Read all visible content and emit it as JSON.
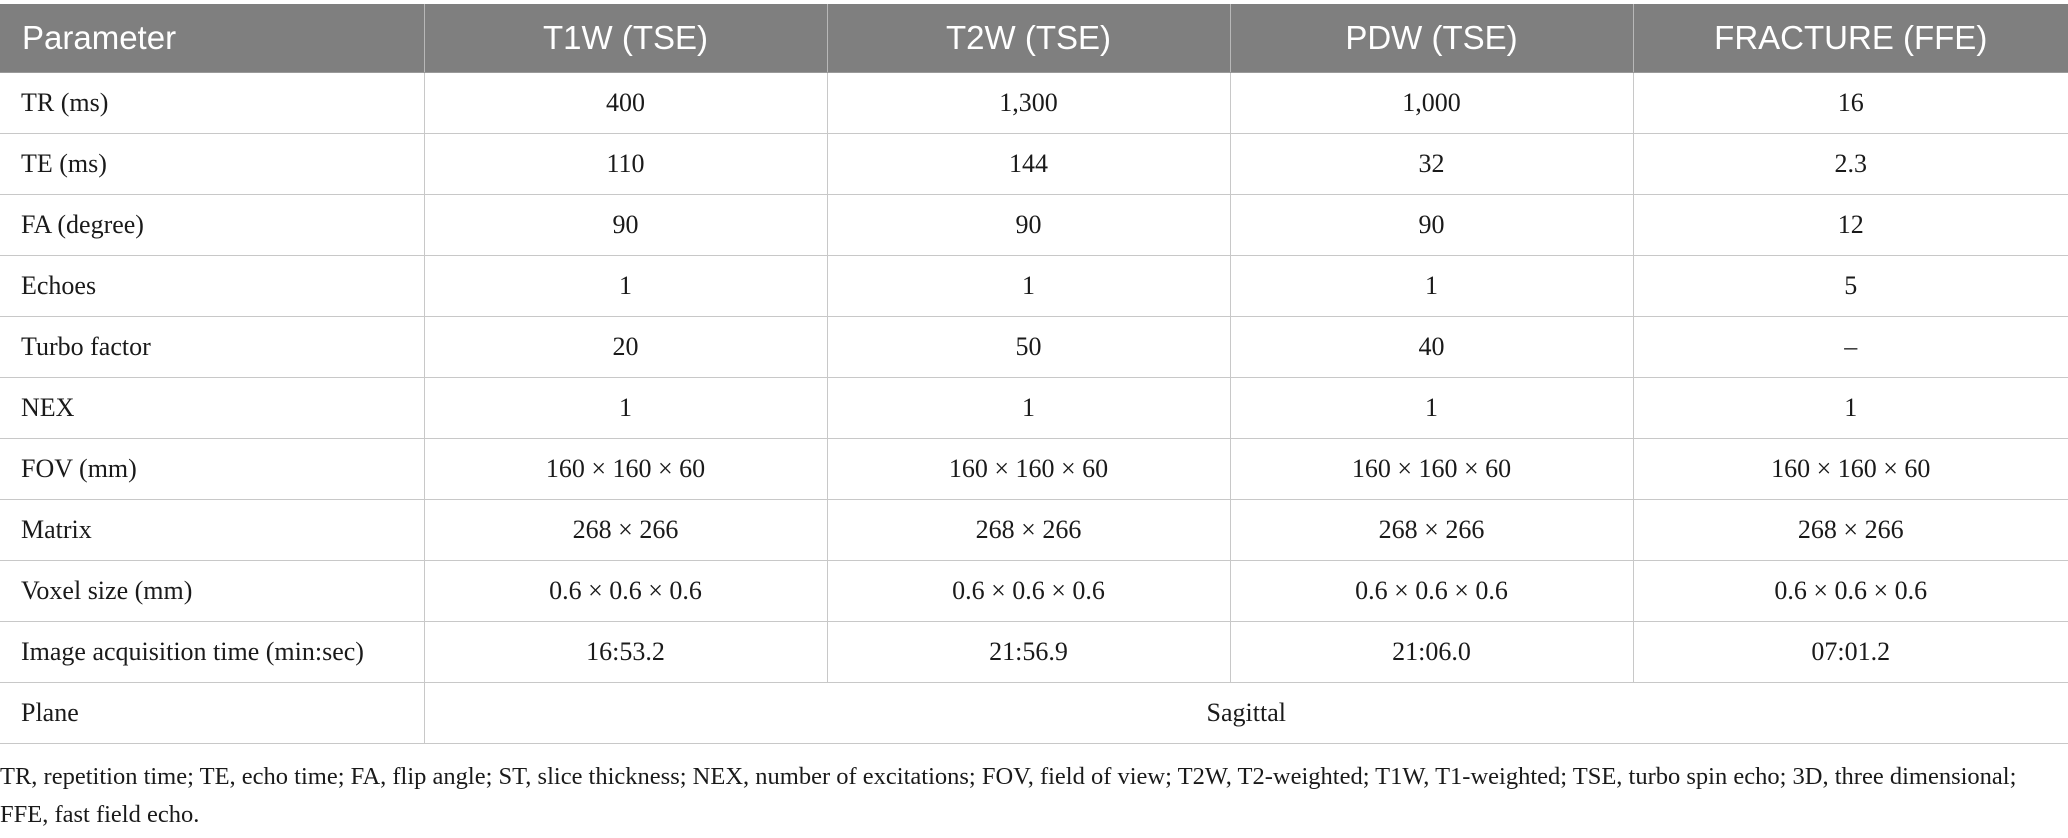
{
  "table": {
    "headers": [
      "Parameter",
      "T1W (TSE)",
      "T2W (TSE)",
      "PDW (TSE)",
      "FRACTURE (FFE)"
    ],
    "rows": [
      {
        "param": "TR (ms)",
        "values": [
          "400",
          "1,300",
          "1,000",
          "16"
        ]
      },
      {
        "param": "TE (ms)",
        "values": [
          "110",
          "144",
          "32",
          "2.3"
        ]
      },
      {
        "param": "FA (degree)",
        "values": [
          "90",
          "90",
          "90",
          "12"
        ]
      },
      {
        "param": "Echoes",
        "values": [
          "1",
          "1",
          "1",
          "5"
        ]
      },
      {
        "param": "Turbo factor",
        "values": [
          "20",
          "50",
          "40",
          "–"
        ]
      },
      {
        "param": "NEX",
        "values": [
          "1",
          "1",
          "1",
          "1"
        ]
      },
      {
        "param": "FOV (mm)",
        "values": [
          "160 × 160 × 60",
          "160 × 160 × 60",
          "160 × 160 × 60",
          "160 × 160 × 60"
        ]
      },
      {
        "param": "Matrix",
        "values": [
          "268 × 266",
          "268 × 266",
          "268 × 266",
          "268 × 266"
        ]
      },
      {
        "param": "Voxel size (mm)",
        "values": [
          "0.6 × 0.6 × 0.6",
          "0.6 × 0.6 × 0.6",
          "0.6 × 0.6 × 0.6",
          "0.6 × 0.6 × 0.6"
        ]
      },
      {
        "param": "Image acquisition time (min:sec)",
        "values": [
          "16:53.2",
          "21:56.9",
          "21:06.0",
          "07:01.2"
        ]
      }
    ],
    "plane_row": {
      "param": "Plane",
      "value": "Sagittal"
    }
  },
  "footnote": "TR, repetition time; TE, echo time; FA, flip angle; ST, slice thickness; NEX, number of excitations; FOV, field of view; T2W, T2-weighted; T1W, T1-weighted; TSE, turbo spin echo; 3D, three dimensional; FFE, fast field echo."
}
